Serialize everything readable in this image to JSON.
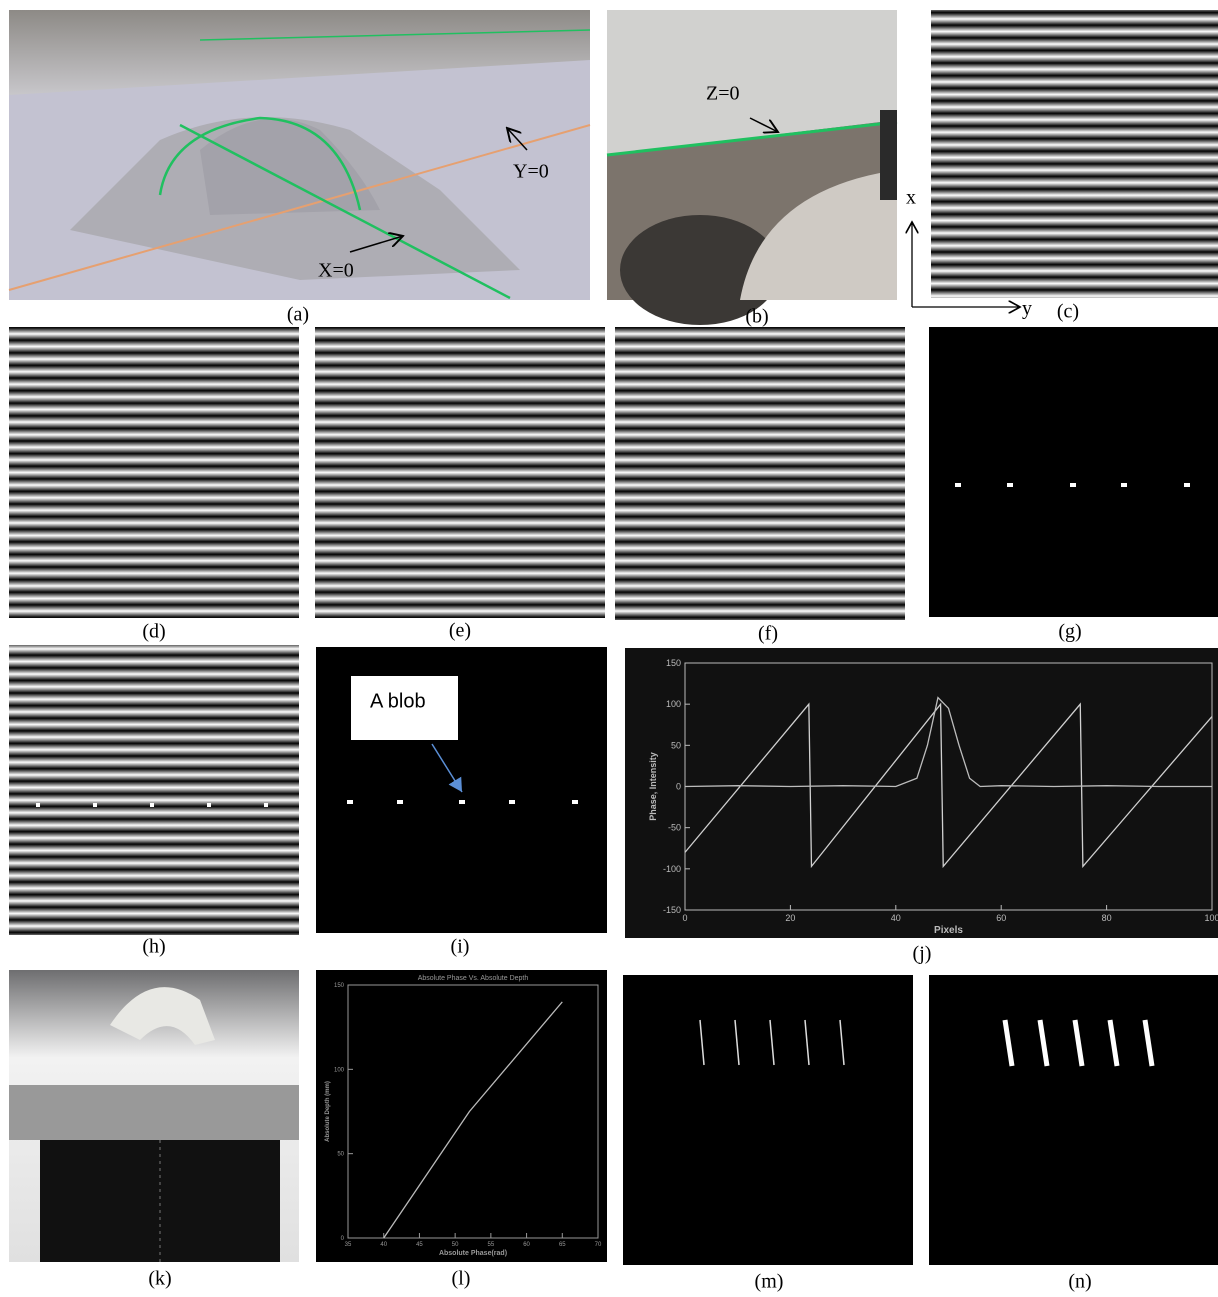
{
  "panels": {
    "a": {
      "label": "(a)",
      "annotations": [
        "Y=0",
        "X=0"
      ]
    },
    "b": {
      "label": "(b)",
      "annotations": [
        "Z=0"
      ]
    },
    "c": {
      "label": "(c)",
      "annotations": [
        "x",
        "y"
      ]
    },
    "d": {
      "label": "(d)"
    },
    "e": {
      "label": "(e)"
    },
    "f": {
      "label": "(f)"
    },
    "g": {
      "label": "(g)"
    },
    "h": {
      "label": "(h)"
    },
    "i": {
      "label": "(i)",
      "annotations": [
        "A blob"
      ]
    },
    "j": {
      "label": "(j)"
    },
    "k": {
      "label": "(k)"
    },
    "l": {
      "label": "(l)"
    },
    "m": {
      "label": "(m)"
    },
    "n": {
      "label": "(n)"
    }
  },
  "chart_data": [
    {
      "type": "line",
      "xlabel": "Pixels",
      "ylabel": "Phase, Intensity",
      "xlim": [
        0,
        100
      ],
      "ylim": [
        -150,
        150
      ],
      "xticks": [
        0,
        20,
        40,
        60,
        80,
        100
      ],
      "yticks": [
        -150,
        -100,
        -50,
        0,
        50,
        100,
        150
      ],
      "series": [
        {
          "color": "#d0d0d0",
          "x": [
            0,
            23.5,
            24,
            48.5,
            49,
            75,
            75.5,
            100
          ],
          "values": [
            -80,
            100,
            -97,
            100,
            -97,
            100,
            -97,
            85
          ]
        },
        {
          "color": "#bdbdbd",
          "x": [
            0,
            10,
            20,
            30,
            40,
            44,
            46,
            48,
            50,
            52,
            54,
            56,
            60,
            70,
            80,
            90,
            100
          ],
          "values": [
            0,
            1,
            0,
            1,
            0,
            10,
            50,
            108,
            95,
            50,
            10,
            0,
            1,
            0,
            1,
            0,
            0
          ]
        }
      ]
    },
    {
      "type": "line",
      "title": "Absolute Phase Vs. Absolute Depth",
      "xlabel": "Absolute Phase(rad)",
      "ylabel": "Absolute Depth (mm)",
      "xlim": [
        35,
        70
      ],
      "ylim": [
        0,
        150
      ],
      "xticks": [
        35,
        40,
        45,
        50,
        55,
        60,
        65,
        70
      ],
      "yticks": [
        0,
        50,
        100,
        150
      ],
      "series": [
        {
          "color": "#bbbbbb",
          "x": [
            40,
            52,
            65
          ],
          "values": [
            0,
            75,
            140
          ]
        }
      ]
    }
  ]
}
